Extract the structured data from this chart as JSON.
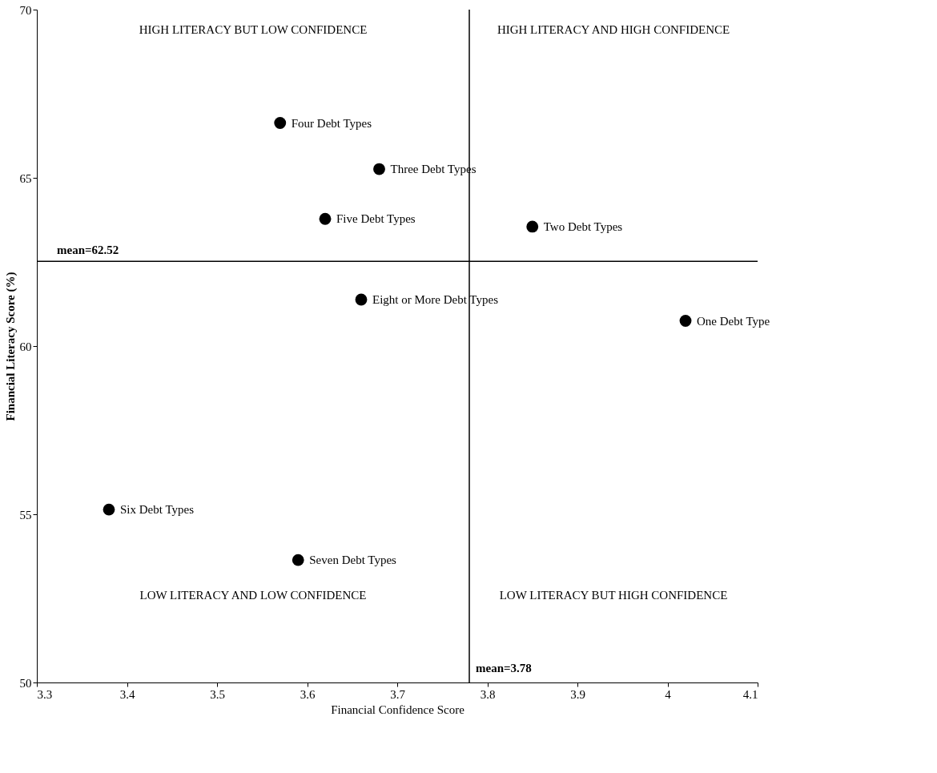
{
  "chart_data": {
    "type": "scatter",
    "xlabel": "Financial Confidence Score",
    "ylabel": "Financial Literacy Score (%)",
    "xlim": [
      3.3,
      4.1
    ],
    "xticks": [
      3.3,
      3.4,
      3.5,
      3.6,
      3.7,
      3.8,
      3.9,
      4,
      4.1
    ],
    "ylim": [
      50,
      70
    ],
    "yticks": [
      50,
      55,
      60,
      65,
      70
    ],
    "grid": false,
    "legend": false,
    "marker": "circle",
    "series": [
      {
        "name": "One Debt Type",
        "color": "#000000",
        "x": [
          4.02
        ],
        "values": [
          60.75
        ]
      },
      {
        "name": "Two Debt Types",
        "color": "#000000",
        "x": [
          3.85
        ],
        "values": [
          63.55
        ]
      },
      {
        "name": "Three Debt Types",
        "color": "#000000",
        "x": [
          3.68
        ],
        "values": [
          65.26
        ]
      },
      {
        "name": "Four Debt Types",
        "color": "#000000",
        "x": [
          3.57
        ],
        "values": [
          66.63
        ]
      },
      {
        "name": "Five Debt Types",
        "color": "#000000",
        "x": [
          3.62
        ],
        "values": [
          63.78
        ]
      },
      {
        "name": "Six Debt Types",
        "color": "#000000",
        "x": [
          3.38
        ],
        "values": [
          55.14
        ]
      },
      {
        "name": "Seven Debt Types",
        "color": "#000000",
        "x": [
          3.59
        ],
        "values": [
          53.64
        ]
      },
      {
        "name": "Eight or More Debt Types",
        "color": "#000000",
        "x": [
          3.66
        ],
        "values": [
          61.38
        ]
      }
    ],
    "ref_lines": [
      {
        "axis": "y",
        "value": 62.52,
        "label": "mean=62.52",
        "color": "#000000",
        "line_style": "solid"
      },
      {
        "axis": "x",
        "value": 3.78,
        "label": "mean=3.78",
        "color": "#000000",
        "line_style": "solid"
      }
    ],
    "annotations": [
      "HIGH LITERACY BUT LOW CONFIDENCE",
      "HIGH LITERACY AND HIGH CONFIDENCE",
      "LOW LITERACY AND LOW CONFIDENCE",
      "LOW LITERACY BUT HIGH CONFIDENCE"
    ]
  }
}
